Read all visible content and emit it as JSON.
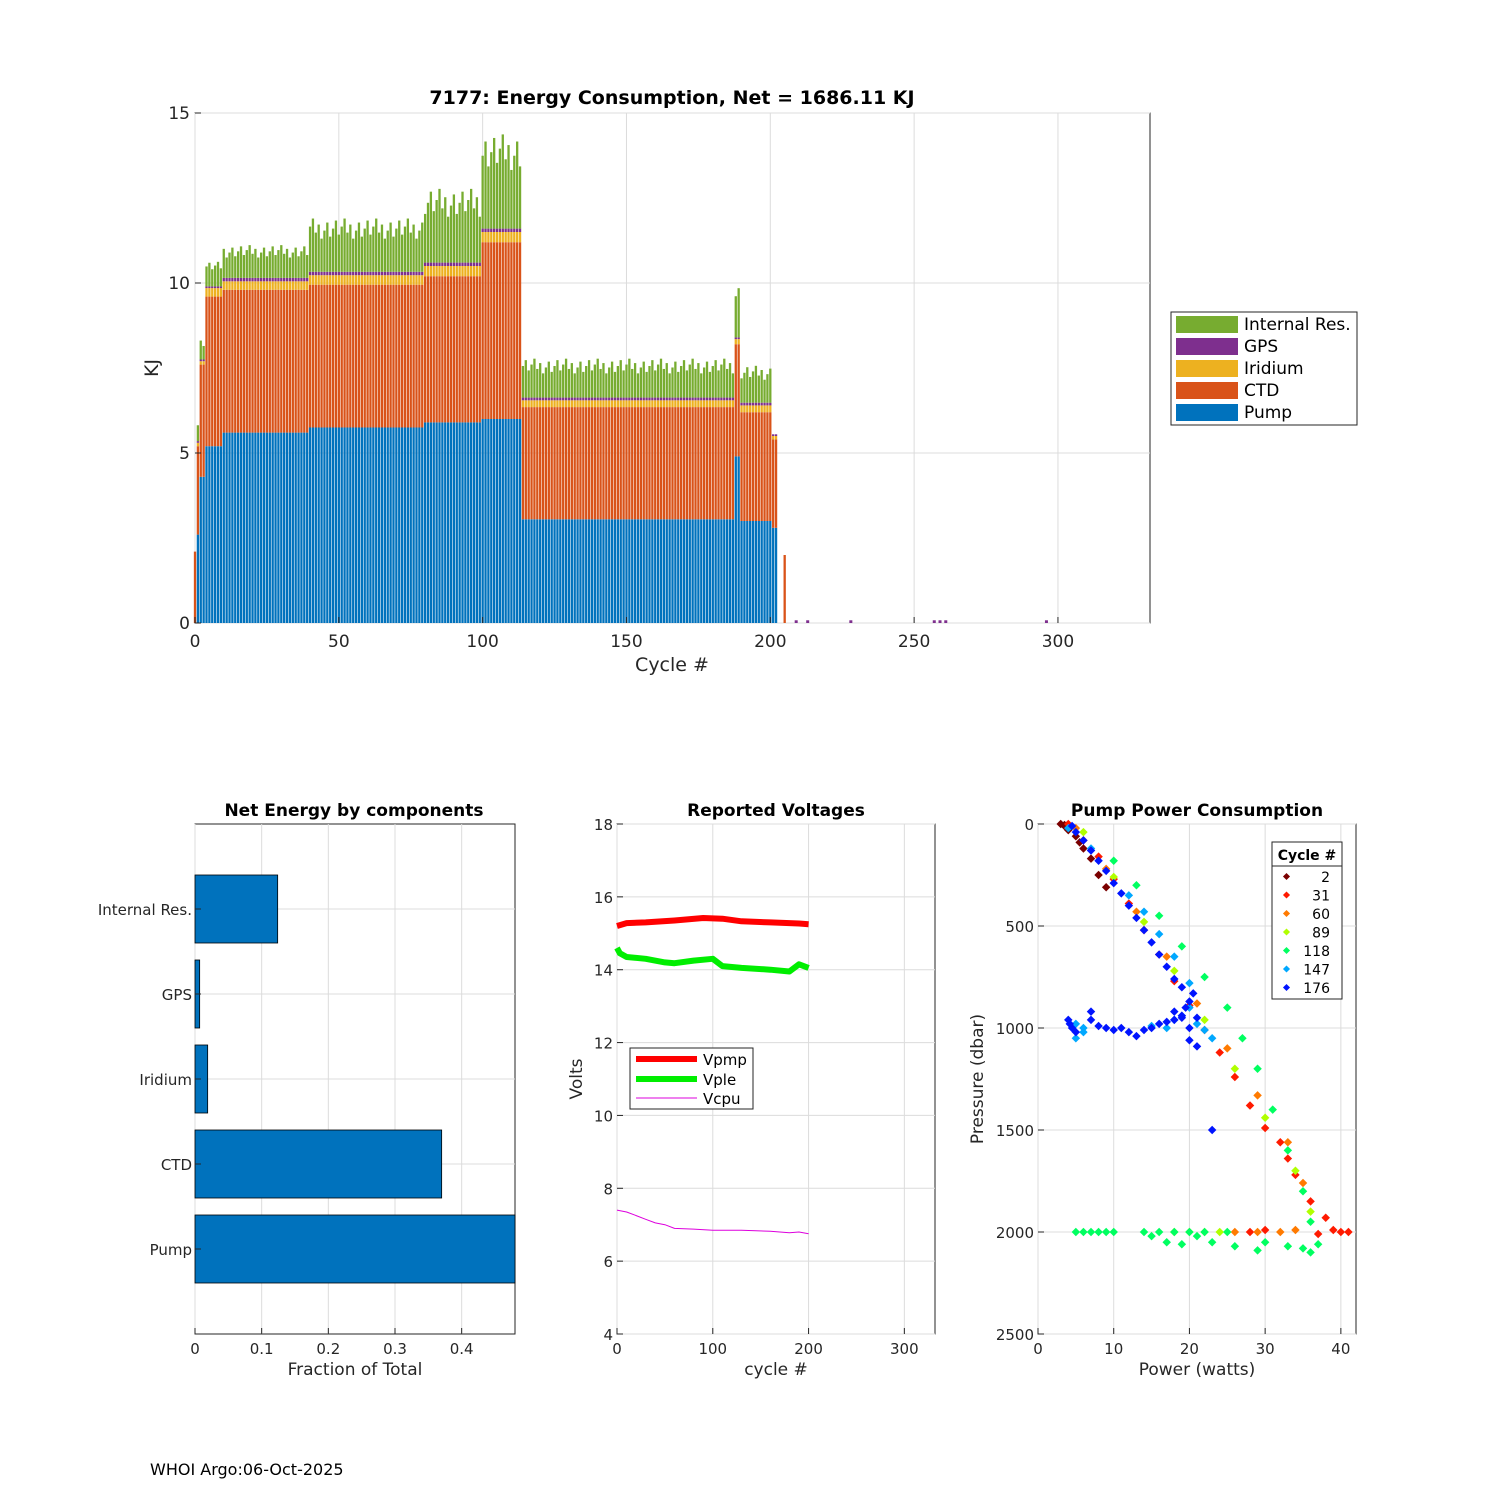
{
  "footer": "WHOI Argo:06-Oct-2025",
  "colors": {
    "Pump": "#0072BD",
    "CTD": "#D95319",
    "Iridium": "#EDB120",
    "GPS": "#7E2F8E",
    "Internal Res.": "#77AC30",
    "Vpmp": "#ff0000",
    "Vple": "#00ee00",
    "Vcpu": "#dd00dd"
  },
  "chart_data": [
    {
      "id": "energy",
      "type": "bar",
      "stacked": true,
      "title": "7177: Energy Consumption,  Net = 1686.11 KJ",
      "xlabel": "Cycle #",
      "ylabel": "KJ",
      "xlim": [
        0,
        332
      ],
      "ylim": [
        0,
        15
      ],
      "xticks": [
        0,
        50,
        100,
        150,
        200,
        250,
        300
      ],
      "yticks": [
        0,
        5,
        10,
        15
      ],
      "grid": true,
      "legend_position": "right",
      "legend": [
        "Internal Res.",
        "GPS",
        "Iridium",
        "CTD",
        "Pump"
      ],
      "series_order": [
        "Pump",
        "CTD",
        "Iridium",
        "GPS",
        "Internal Res."
      ],
      "segments": [
        {
          "from": 0,
          "to": 0,
          "Pump": 0,
          "CTD": 2.1,
          "Iridium": 0,
          "GPS": 0,
          "Internal Res.": 0
        },
        {
          "from": 1,
          "to": 1,
          "Pump": 2.6,
          "CTD": 2.6,
          "Iridium": 0.1,
          "GPS": 0.05,
          "Internal Res.": 0.5
        },
        {
          "from": 2,
          "to": 3,
          "Pump": 4.3,
          "CTD": 3.3,
          "Iridium": 0.1,
          "GPS": 0.05,
          "Internal Res.": 0.5
        },
        {
          "from": 4,
          "to": 9,
          "Pump": 5.2,
          "CTD": 4.4,
          "Iridium": 0.25,
          "GPS": 0.05,
          "Internal Res.": 0.6
        },
        {
          "from": 10,
          "to": 39,
          "Pump": 5.6,
          "CTD": 4.2,
          "Iridium": 0.25,
          "GPS": 0.1,
          "Internal Res.": 0.8
        },
        {
          "from": 40,
          "to": 79,
          "Pump": 5.75,
          "CTD": 4.2,
          "Iridium": 0.28,
          "GPS": 0.1,
          "Internal Res.": 1.3
        },
        {
          "from": 80,
          "to": 99,
          "Pump": 5.9,
          "CTD": 4.3,
          "Iridium": 0.3,
          "GPS": 0.1,
          "Internal Res.": 1.8
        },
        {
          "from": 100,
          "to": 113,
          "Pump": 6.0,
          "CTD": 5.2,
          "Iridium": 0.3,
          "GPS": 0.1,
          "Internal Res.": 2.3
        },
        {
          "from": 114,
          "to": 187,
          "Pump": 3.05,
          "CTD": 3.3,
          "Iridium": 0.2,
          "GPS": 0.08,
          "Internal Res.": 0.95
        },
        {
          "from": 188,
          "to": 189,
          "Pump": 4.9,
          "CTD": 3.3,
          "Iridium": 0.15,
          "GPS": 0.05,
          "Internal Res.": 1.3
        },
        {
          "from": 190,
          "to": 200,
          "Pump": 3.0,
          "CTD": 3.2,
          "Iridium": 0.2,
          "GPS": 0.08,
          "Internal Res.": 0.9
        },
        {
          "from": 201,
          "to": 202,
          "Pump": 2.8,
          "CTD": 2.6,
          "Iridium": 0.1,
          "GPS": 0.05,
          "Internal Res.": 0
        },
        {
          "from": 205,
          "to": 205,
          "Pump": 0,
          "CTD": 2.0,
          "Iridium": 0,
          "GPS": 0,
          "Internal Res.": 0
        }
      ],
      "small_gps_cycles": [
        209,
        213,
        228,
        257,
        259,
        261,
        296
      ]
    },
    {
      "id": "components",
      "type": "bar",
      "orientation": "horizontal",
      "title": "Net Energy by components",
      "xlabel": "Fraction of Total",
      "xlim": [
        0,
        0.48
      ],
      "xticks": [
        0,
        0.1,
        0.2,
        0.3,
        0.4
      ],
      "xtick_labels": [
        "0",
        "0.1",
        "0.2",
        "0.3",
        "0.4"
      ],
      "categories": [
        "Internal Res.",
        "GPS",
        "Iridium",
        "CTD",
        "Pump"
      ],
      "values": [
        0.124,
        0.007,
        0.019,
        0.37,
        0.49
      ],
      "grid": true
    },
    {
      "id": "voltages",
      "type": "line",
      "title": "Reported Voltages",
      "xlabel": "cycle #",
      "ylabel": "Volts",
      "xlim": [
        0,
        332
      ],
      "ylim": [
        4,
        18
      ],
      "xticks": [
        0,
        100,
        200,
        300
      ],
      "yticks": [
        4,
        6,
        8,
        10,
        12,
        14,
        16,
        18
      ],
      "grid": true,
      "legend_position": "center-left",
      "series": [
        {
          "name": "Vpmp",
          "width": "thick",
          "x": [
            0,
            10,
            30,
            60,
            90,
            110,
            130,
            160,
            190,
            200
          ],
          "y": [
            15.2,
            15.28,
            15.3,
            15.35,
            15.42,
            15.4,
            15.33,
            15.3,
            15.27,
            15.25
          ]
        },
        {
          "name": "Vple",
          "width": "thick",
          "x": [
            0,
            3,
            10,
            30,
            50,
            60,
            80,
            100,
            110,
            130,
            160,
            180,
            190,
            200
          ],
          "y": [
            14.6,
            14.45,
            14.35,
            14.3,
            14.2,
            14.18,
            14.25,
            14.3,
            14.1,
            14.05,
            14.0,
            13.95,
            14.15,
            14.05
          ]
        },
        {
          "name": "Vcpu",
          "width": "thin",
          "x": [
            0,
            10,
            20,
            30,
            40,
            50,
            60,
            80,
            100,
            130,
            160,
            180,
            190,
            200
          ],
          "y": [
            7.4,
            7.35,
            7.25,
            7.15,
            7.05,
            7.0,
            6.9,
            6.88,
            6.85,
            6.85,
            6.82,
            6.78,
            6.8,
            6.75
          ]
        }
      ]
    },
    {
      "id": "pump",
      "type": "scatter",
      "title": "Pump Power Consumption",
      "xlabel": "Power (watts)",
      "ylabel": "Pressure (dbar)",
      "xlim": [
        0,
        42
      ],
      "ylim": [
        0,
        2500
      ],
      "y_reversed": true,
      "xticks": [
        0,
        10,
        20,
        30,
        40
      ],
      "yticks": [
        0,
        500,
        1000,
        1500,
        2000,
        2500
      ],
      "grid": true,
      "legend_title": "Cycle #",
      "legend_position": "top-right",
      "series": [
        {
          "name": "2",
          "color": "#7a0000",
          "points": [
            [
              3,
              0
            ],
            [
              3.5,
              10
            ],
            [
              4,
              30
            ],
            [
              5,
              60
            ],
            [
              6,
              120
            ],
            [
              7,
              170
            ],
            [
              8,
              250
            ],
            [
              9,
              310
            ],
            [
              3.5,
              5
            ],
            [
              5.5,
              90
            ]
          ]
        },
        {
          "name": "31",
          "color": "#ff1a00",
          "points": [
            [
              4,
              0
            ],
            [
              6,
              80
            ],
            [
              8,
              160
            ],
            [
              10,
              270
            ],
            [
              12,
              390
            ],
            [
              14,
              520
            ],
            [
              16,
              640
            ],
            [
              18,
              770
            ],
            [
              20,
              890
            ],
            [
              22,
              1010
            ],
            [
              24,
              1120
            ],
            [
              26,
              1240
            ],
            [
              28,
              1380
            ],
            [
              30,
              1490
            ],
            [
              32,
              1560
            ],
            [
              33,
              1640
            ],
            [
              34,
              1720
            ],
            [
              36,
              1850
            ],
            [
              38,
              1930
            ],
            [
              40,
              2000
            ],
            [
              41,
              2000
            ],
            [
              39,
              1990
            ],
            [
              37,
              2010
            ],
            [
              28,
              2000
            ],
            [
              30,
              1990
            ]
          ]
        },
        {
          "name": "60",
          "color": "#ff7a00",
          "points": [
            [
              5,
              20
            ],
            [
              9,
              220
            ],
            [
              13,
              430
            ],
            [
              17,
              650
            ],
            [
              21,
              880
            ],
            [
              25,
              1100
            ],
            [
              29,
              1330
            ],
            [
              33,
              1560
            ],
            [
              35,
              1760
            ],
            [
              34,
              1990
            ],
            [
              32,
              2000
            ],
            [
              29,
              2000
            ],
            [
              26,
              2000
            ]
          ]
        },
        {
          "name": "89",
          "color": "#b0ff00",
          "points": [
            [
              6,
              40
            ],
            [
              10,
              260
            ],
            [
              14,
              480
            ],
            [
              18,
              720
            ],
            [
              22,
              960
            ],
            [
              26,
              1200
            ],
            [
              30,
              1440
            ],
            [
              34,
              1700
            ],
            [
              36,
              1900
            ],
            [
              24,
              2000
            ],
            [
              22,
              2000
            ],
            [
              20,
              2000
            ],
            [
              18,
              2000
            ]
          ]
        },
        {
          "name": "118",
          "color": "#00ff60",
          "points": [
            [
              5,
              2000
            ],
            [
              6,
              2000
            ],
            [
              7,
              2000
            ],
            [
              8,
              2000
            ],
            [
              9,
              2000
            ],
            [
              10,
              2000
            ],
            [
              14,
              2000
            ],
            [
              15,
              2020
            ],
            [
              16,
              2000
            ],
            [
              17,
              2050
            ],
            [
              18,
              2000
            ],
            [
              19,
              2060
            ],
            [
              20,
              2000
            ],
            [
              21,
              2020
            ],
            [
              22,
              2000
            ],
            [
              23,
              2050
            ],
            [
              25,
              2000
            ],
            [
              26,
              2070
            ],
            [
              29,
              2090
            ],
            [
              30,
              2050
            ],
            [
              33,
              2070
            ],
            [
              35,
              2080
            ],
            [
              36,
              2100
            ],
            [
              37,
              2060
            ],
            [
              36,
              1950
            ],
            [
              35,
              1800
            ],
            [
              33,
              1600
            ],
            [
              31,
              1400
            ],
            [
              29,
              1200
            ],
            [
              27,
              1050
            ],
            [
              25,
              900
            ],
            [
              22,
              750
            ],
            [
              19,
              600
            ],
            [
              16,
              450
            ],
            [
              13,
              300
            ],
            [
              10,
              180
            ]
          ]
        },
        {
          "name": "147",
          "color": "#00a8ff",
          "points": [
            [
              5,
              980
            ],
            [
              6,
              1020
            ],
            [
              5,
              1050
            ],
            [
              6,
              1000
            ],
            [
              15,
              990
            ],
            [
              17,
              1000
            ],
            [
              18,
              960
            ],
            [
              19,
              940
            ],
            [
              20,
              900
            ],
            [
              21,
              980
            ],
            [
              22,
              1010
            ],
            [
              23,
              1050
            ],
            [
              12,
              350
            ],
            [
              14,
              430
            ],
            [
              16,
              540
            ],
            [
              18,
              650
            ],
            [
              20,
              780
            ],
            [
              4,
              20
            ],
            [
              7,
              120
            ]
          ]
        },
        {
          "name": "176",
          "color": "#0014ff",
          "points": [
            [
              4,
              960
            ],
            [
              4.5,
              1000
            ],
            [
              5,
              1020
            ],
            [
              4.2,
              980
            ],
            [
              7,
              920
            ],
            [
              7,
              960
            ],
            [
              8,
              990
            ],
            [
              9,
              1000
            ],
            [
              10,
              1010
            ],
            [
              11,
              1000
            ],
            [
              12,
              1020
            ],
            [
              13,
              1040
            ],
            [
              14,
              1010
            ],
            [
              15,
              1000
            ],
            [
              16,
              980
            ],
            [
              17,
              970
            ],
            [
              18,
              960
            ],
            [
              19,
              940
            ],
            [
              19.5,
              900
            ],
            [
              20,
              870
            ],
            [
              20.5,
              830
            ],
            [
              19,
              800
            ],
            [
              18,
              760
            ],
            [
              17,
              700
            ],
            [
              16,
              640
            ],
            [
              15,
              580
            ],
            [
              14,
              520
            ],
            [
              13,
              460
            ],
            [
              12,
              400
            ],
            [
              11,
              340
            ],
            [
              10,
              290
            ],
            [
              9,
              230
            ],
            [
              8,
              180
            ],
            [
              7,
              130
            ],
            [
              6,
              80
            ],
            [
              5,
              40
            ],
            [
              4.5,
              10
            ],
            [
              20,
              1060
            ],
            [
              21,
              1090
            ],
            [
              23,
              1500
            ],
            [
              20,
              1000
            ],
            [
              19,
              950
            ],
            [
              18,
              920
            ],
            [
              21,
              950
            ]
          ]
        }
      ]
    }
  ]
}
